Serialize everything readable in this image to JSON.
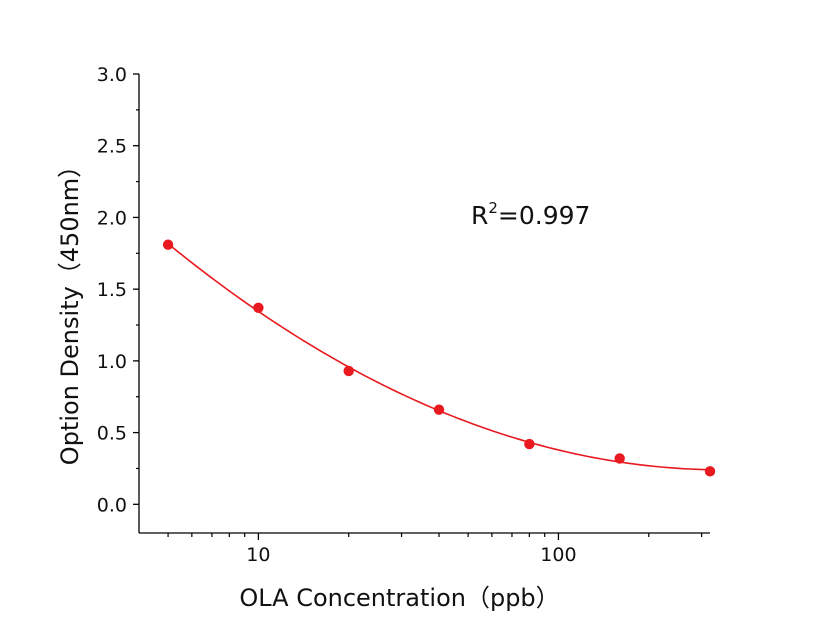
{
  "chart_data": {
    "type": "scatter",
    "xlabel": "OLA  Concentration（ppb）",
    "ylabel": "Option Density（450nm）",
    "x_scale": "log",
    "xlim": [
      4,
      320
    ],
    "ylim": [
      -0.2,
      3.0
    ],
    "x_ticks": [
      10,
      100
    ],
    "x_tick_labels": [
      "10",
      "100"
    ],
    "y_ticks": [
      0.0,
      0.5,
      1.0,
      1.5,
      2.0,
      2.5,
      3.0
    ],
    "y_tick_labels": [
      "0.0",
      "0.5",
      "1.0",
      "1.5",
      "2.0",
      "2.5",
      "3.0"
    ],
    "grid": false,
    "annotation": {
      "base": "R",
      "sup": "2",
      "rest": "=0.997"
    },
    "series": [
      {
        "color": "#e8191f",
        "marker": "circle",
        "fit_line": true,
        "x": [
          5,
          10,
          20,
          40,
          80,
          160,
          320
        ],
        "y": [
          1.81,
          1.37,
          0.93,
          0.66,
          0.42,
          0.32,
          0.23
        ]
      }
    ]
  }
}
